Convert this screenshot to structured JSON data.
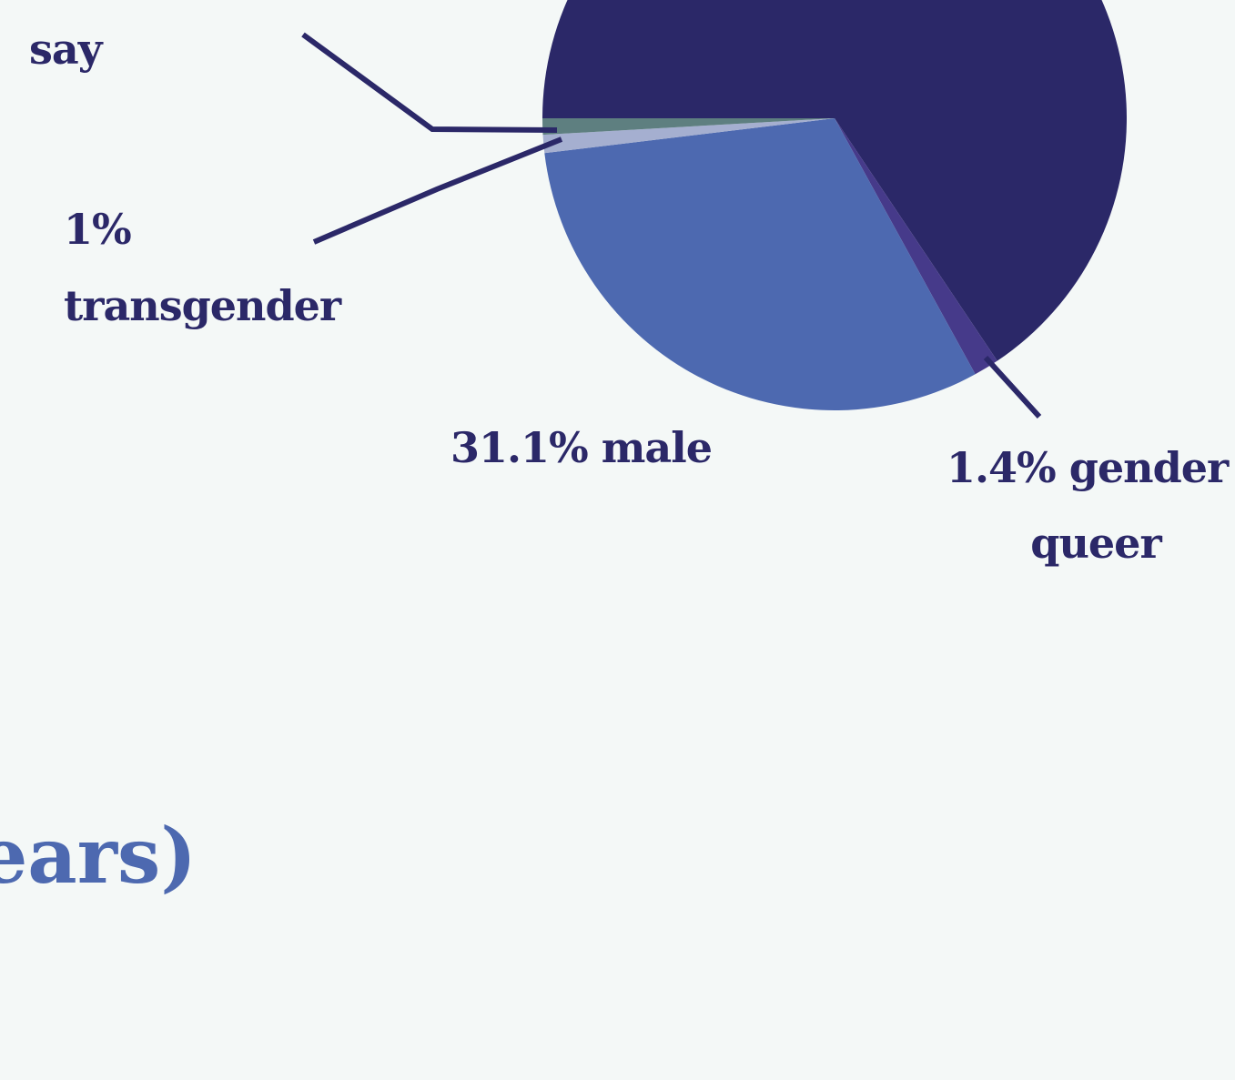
{
  "chart_data": {
    "type": "pie",
    "categories": [
      null,
      "gender queer",
      "male",
      "transgender",
      "say"
    ],
    "values": [
      65.6,
      1.4,
      31.1,
      1,
      0.9
    ],
    "colors": [
      "#2b2868",
      "#463a8a",
      "#4d69b0",
      "#a5afd0",
      "#5e7f80"
    ],
    "labels": [
      null,
      [
        "1.4% gender",
        "queer"
      ],
      [
        "31.1% male"
      ],
      [
        "1%",
        "transgender"
      ],
      [
        "say"
      ]
    ],
    "heading": "years)"
  }
}
